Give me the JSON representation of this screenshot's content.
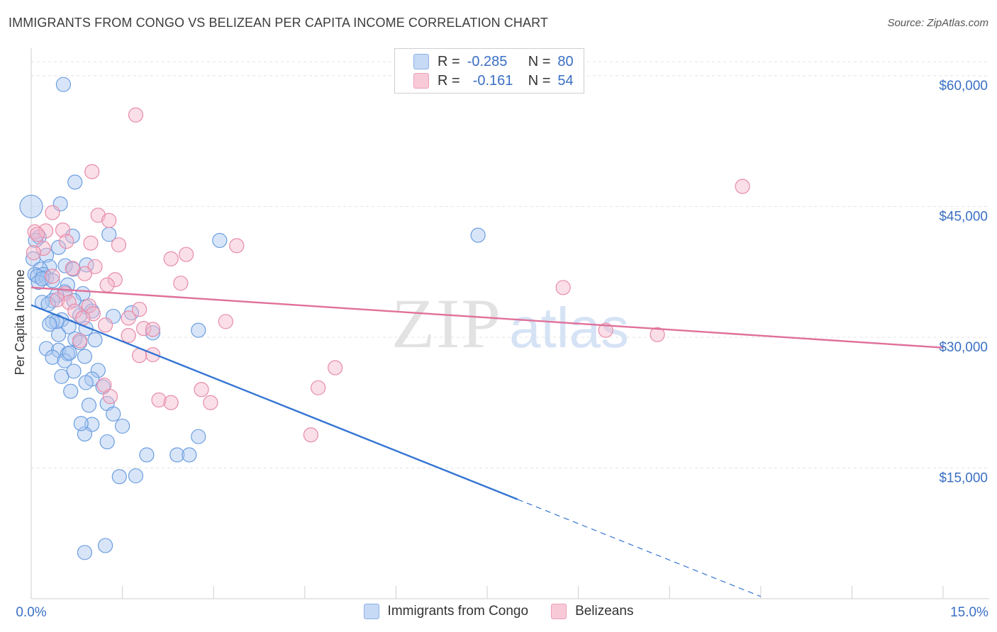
{
  "header": {
    "title": "IMMIGRANTS FROM CONGO VS BELIZEAN PER CAPITA INCOME CORRELATION CHART",
    "source": "Source: ZipAtlas.com"
  },
  "watermark": {
    "zip": "ZIP",
    "atlas": "atlas"
  },
  "legend": {
    "r_label": "R =",
    "n_label": "N =",
    "series1": {
      "r": "-0.285",
      "n": "80"
    },
    "series2": {
      "r": "-0.161",
      "n": "54"
    }
  },
  "colors": {
    "blue_fill": "#a9c6f0",
    "blue_stroke": "#6b9ee0",
    "blue_line": "#3575d3",
    "pink_fill": "#f5b8cb",
    "pink_stroke": "#e88ba8",
    "pink_line": "#e0709a",
    "axis_label": "#3a6fc4",
    "grid": "#e3e3e3"
  },
  "chart_data": {
    "type": "scatter",
    "title": "IMMIGRANTS FROM CONGO VS BELIZEAN PER CAPITA INCOME CORRELATION CHART",
    "xlabel": "",
    "ylabel": "Per Capita Income",
    "xlim": [
      0,
      15
    ],
    "ylim": [
      0,
      63000
    ],
    "x_tick_labels": [
      "0.0%",
      "15.0%"
    ],
    "y_ticks": [
      15000,
      30000,
      45000,
      60000
    ],
    "y_tick_labels": [
      "$15,000",
      "$30,000",
      "$45,000",
      "$60,000"
    ],
    "grid": true,
    "legend_position": "top-center",
    "series": [
      {
        "name": "Immigrants from Congo",
        "r": -0.285,
        "n": 80,
        "trend": {
          "x0": 0.0,
          "y0": 33700,
          "x1": 8.0,
          "y1": 11400,
          "dashed_to_x": 12.0
        },
        "points": [
          [
            0.53,
            59000
          ],
          [
            0.0,
            45000
          ],
          [
            0.72,
            47800
          ],
          [
            0.48,
            45300
          ],
          [
            1.28,
            41800
          ],
          [
            0.68,
            41600
          ],
          [
            0.13,
            41500
          ],
          [
            0.07,
            41100
          ],
          [
            0.45,
            40300
          ],
          [
            0.25,
            39400
          ],
          [
            0.03,
            39000
          ],
          [
            0.56,
            38200
          ],
          [
            0.3,
            38100
          ],
          [
            0.91,
            38300
          ],
          [
            0.15,
            37800
          ],
          [
            0.69,
            37800
          ],
          [
            0.06,
            37200
          ],
          [
            0.2,
            37200
          ],
          [
            0.1,
            37000
          ],
          [
            0.25,
            36800
          ],
          [
            0.35,
            36500
          ],
          [
            0.12,
            36300
          ],
          [
            0.6,
            36000
          ],
          [
            0.55,
            35200
          ],
          [
            0.85,
            35000
          ],
          [
            0.42,
            34800
          ],
          [
            0.35,
            34200
          ],
          [
            0.18,
            34000
          ],
          [
            0.28,
            33800
          ],
          [
            0.9,
            33500
          ],
          [
            0.7,
            34200
          ],
          [
            1.0,
            33000
          ],
          [
            0.8,
            32500
          ],
          [
            0.5,
            32000
          ],
          [
            0.35,
            31800
          ],
          [
            0.62,
            31200
          ],
          [
            0.9,
            31000
          ],
          [
            0.45,
            30300
          ],
          [
            0.72,
            29800
          ],
          [
            1.05,
            29700
          ],
          [
            0.8,
            29400
          ],
          [
            0.25,
            28700
          ],
          [
            0.45,
            28500
          ],
          [
            0.6,
            28100
          ],
          [
            0.88,
            27800
          ],
          [
            0.35,
            27700
          ],
          [
            0.55,
            27300
          ],
          [
            1.1,
            26200
          ],
          [
            0.7,
            26100
          ],
          [
            0.5,
            25500
          ],
          [
            1.0,
            25200
          ],
          [
            0.9,
            24800
          ],
          [
            1.18,
            24300
          ],
          [
            0.65,
            23800
          ],
          [
            1.25,
            22400
          ],
          [
            0.95,
            22200
          ],
          [
            1.35,
            21200
          ],
          [
            1.0,
            20000
          ],
          [
            1.5,
            19800
          ],
          [
            0.88,
            18900
          ],
          [
            1.25,
            18000
          ],
          [
            1.9,
            16500
          ],
          [
            2.4,
            16500
          ],
          [
            1.72,
            14100
          ],
          [
            1.45,
            14000
          ],
          [
            1.22,
            6100
          ],
          [
            0.88,
            5300
          ],
          [
            2.6,
            16500
          ],
          [
            0.42,
            31800
          ],
          [
            2.0,
            30500
          ],
          [
            3.1,
            41100
          ],
          [
            2.75,
            30800
          ],
          [
            1.35,
            32400
          ],
          [
            1.65,
            32800
          ],
          [
            0.18,
            36700
          ],
          [
            0.82,
            20100
          ],
          [
            0.63,
            28200
          ],
          [
            7.35,
            41700
          ],
          [
            2.75,
            18600
          ],
          [
            0.3,
            31500
          ]
        ]
      },
      {
        "name": "Belizeans",
        "r": -0.161,
        "n": 54,
        "trend": {
          "x0": 0.0,
          "y0": 35700,
          "x1": 15.0,
          "y1": 28800
        },
        "points": [
          [
            1.72,
            55500
          ],
          [
            1.0,
            49000
          ],
          [
            11.7,
            47300
          ],
          [
            0.35,
            44300
          ],
          [
            1.1,
            44000
          ],
          [
            1.28,
            43400
          ],
          [
            0.06,
            42100
          ],
          [
            0.24,
            42200
          ],
          [
            0.52,
            42300
          ],
          [
            0.1,
            41800
          ],
          [
            0.58,
            41000
          ],
          [
            0.98,
            40800
          ],
          [
            1.44,
            40600
          ],
          [
            3.38,
            40500
          ],
          [
            0.2,
            40200
          ],
          [
            2.55,
            39500
          ],
          [
            2.3,
            39000
          ],
          [
            0.04,
            39700
          ],
          [
            1.05,
            38100
          ],
          [
            0.68,
            37900
          ],
          [
            0.35,
            37000
          ],
          [
            1.38,
            36600
          ],
          [
            1.25,
            36000
          ],
          [
            2.46,
            36200
          ],
          [
            8.75,
            35700
          ],
          [
            0.56,
            35000
          ],
          [
            0.43,
            34300
          ],
          [
            0.62,
            34000
          ],
          [
            0.95,
            33600
          ],
          [
            1.78,
            33200
          ],
          [
            0.72,
            33000
          ],
          [
            1.02,
            32700
          ],
          [
            1.6,
            32200
          ],
          [
            0.85,
            32200
          ],
          [
            3.2,
            31800
          ],
          [
            1.22,
            31400
          ],
          [
            1.85,
            31000
          ],
          [
            2.0,
            30900
          ],
          [
            9.45,
            30800
          ],
          [
            10.3,
            30300
          ],
          [
            1.6,
            30200
          ],
          [
            0.8,
            29600
          ],
          [
            2.0,
            28000
          ],
          [
            1.78,
            27900
          ],
          [
            5.0,
            26500
          ],
          [
            1.2,
            24500
          ],
          [
            1.3,
            23200
          ],
          [
            2.8,
            24000
          ],
          [
            4.72,
            24200
          ],
          [
            2.1,
            22800
          ],
          [
            2.3,
            22500
          ],
          [
            2.95,
            22500
          ],
          [
            4.6,
            18800
          ],
          [
            0.88,
            37300
          ]
        ]
      }
    ]
  }
}
